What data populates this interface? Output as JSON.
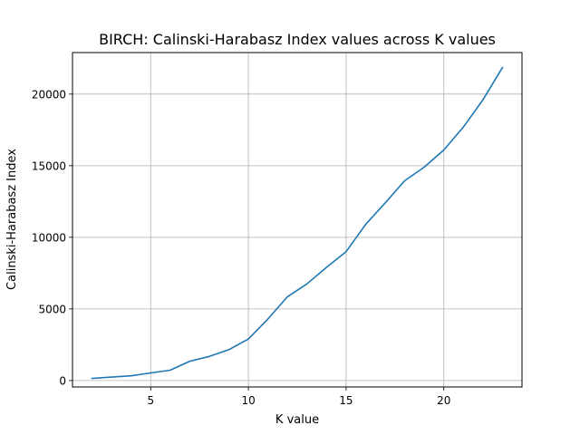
{
  "chart_data": {
    "type": "line",
    "title": "BIRCH: Calinski-Harabasz Index values across K values",
    "xlabel": "K value",
    "ylabel": "Calinski-Harabasz Index",
    "xlim": [
      1.0,
      24.0
    ],
    "ylim": [
      -450,
      22900
    ],
    "xticks": [
      5,
      10,
      15,
      20
    ],
    "yticks": [
      0,
      5000,
      10000,
      15000,
      20000
    ],
    "grid": true,
    "line_color": "#1f77b4",
    "series": [
      {
        "x": [
          2,
          3,
          4,
          5,
          6,
          7,
          8,
          9,
          10,
          11,
          12,
          13,
          14,
          15,
          16,
          17,
          18,
          19,
          20,
          21,
          22,
          23
        ],
        "values": [
          150,
          240,
          330,
          530,
          720,
          1350,
          1680,
          2150,
          2900,
          4300,
          5850,
          6750,
          7900,
          9000,
          10900,
          12400,
          13950,
          14900,
          16100,
          17700,
          19600,
          21850
        ]
      }
    ]
  }
}
